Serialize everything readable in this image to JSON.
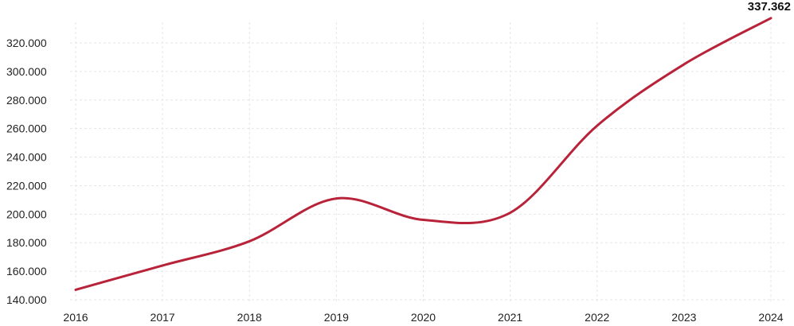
{
  "chart_data": {
    "type": "line",
    "title": "",
    "xlabel": "",
    "ylabel": "",
    "categories": [
      "2016",
      "2017",
      "2018",
      "2019",
      "2020",
      "2021",
      "2022",
      "2023",
      "2024"
    ],
    "values": [
      147000,
      164000,
      181000,
      211000,
      196000,
      201000,
      262000,
      305000,
      337362
    ],
    "ylim": [
      140000,
      330000
    ],
    "y_ticks": [
      "140.000",
      "160.000",
      "180.000",
      "200.000",
      "220.000",
      "240.000",
      "260.000",
      "280.000",
      "300.000",
      "320.000"
    ],
    "y_tick_values": [
      140000,
      160000,
      180000,
      200000,
      220000,
      240000,
      260000,
      280000,
      300000,
      320000
    ],
    "data_labels": [
      {
        "index": 8,
        "text": "337.362"
      }
    ],
    "grid": true,
    "legend": "none",
    "line_color": "#b8233a"
  }
}
